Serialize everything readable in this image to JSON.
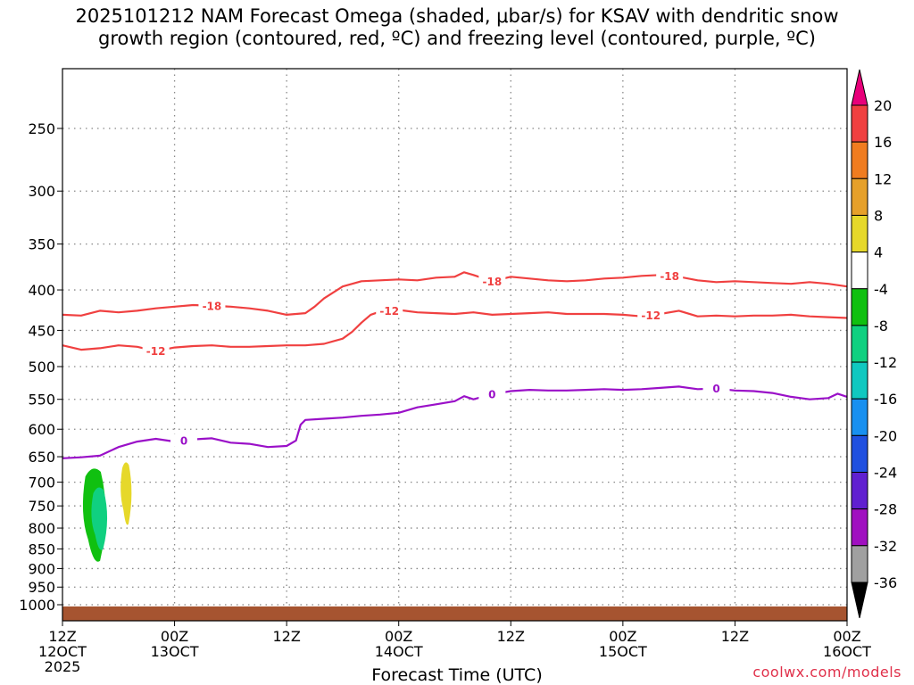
{
  "title": {
    "line1": "2025101212 NAM Forecast Omega (shaded, μbar/s) for KSAV with dendritic snow",
    "line2": "growth region (contoured, red, ºC) and freezing level (contoured, purple, ºC)"
  },
  "credit": "coolwx.com/models",
  "chart_data": {
    "type": "contour",
    "xlabel": "Forecast Time (UTC)",
    "xlim": [
      0,
      84
    ],
    "ylim": [
      1000,
      200
    ],
    "x_ticks": [
      {
        "x": 0,
        "labels": [
          "12Z",
          "12OCT",
          "2025"
        ]
      },
      {
        "x": 12,
        "labels": [
          "00Z",
          "13OCT"
        ]
      },
      {
        "x": 24,
        "labels": [
          "12Z"
        ]
      },
      {
        "x": 36,
        "labels": [
          "00Z",
          "14OCT"
        ]
      },
      {
        "x": 48,
        "labels": [
          "12Z"
        ]
      },
      {
        "x": 60,
        "labels": [
          "00Z",
          "15OCT"
        ]
      },
      {
        "x": 72,
        "labels": [
          "12Z"
        ]
      },
      {
        "x": 84,
        "labels": [
          "00Z",
          "16OCT"
        ]
      }
    ],
    "y_ticks": [
      250,
      300,
      350,
      400,
      450,
      500,
      550,
      600,
      650,
      700,
      750,
      800,
      850,
      900,
      950,
      1000
    ],
    "colorbar": {
      "labels": [
        "20",
        "16",
        "12",
        "8",
        "4",
        "-4",
        "-8",
        "-12",
        "-16",
        "-20",
        "-24",
        "-28",
        "-32",
        "-36"
      ],
      "colors": [
        "#e8007a",
        "#f04040",
        "#f07c20",
        "#e6a02a",
        "#e6d82a",
        "#ffffff",
        "#10c010",
        "#10d080",
        "#10c8c0",
        "#1890f0",
        "#2050e0",
        "#6020d0",
        "#a010c0",
        "#a0a0a0",
        "#000000"
      ]
    },
    "series": [
      {
        "name": "-18",
        "color": "#f04040",
        "label_x": [
          16,
          46,
          65
        ],
        "points": [
          [
            0,
            430
          ],
          [
            2,
            431
          ],
          [
            4,
            425
          ],
          [
            6,
            427
          ],
          [
            8,
            425
          ],
          [
            10,
            422
          ],
          [
            12,
            420
          ],
          [
            14,
            418
          ],
          [
            16,
            419
          ],
          [
            18,
            420
          ],
          [
            20,
            422
          ],
          [
            22,
            425
          ],
          [
            24,
            430
          ],
          [
            26,
            428
          ],
          [
            27,
            420
          ],
          [
            28,
            410
          ],
          [
            30,
            396
          ],
          [
            32,
            390
          ],
          [
            34,
            389
          ],
          [
            36,
            388
          ],
          [
            38,
            389
          ],
          [
            40,
            386
          ],
          [
            42,
            385
          ],
          [
            43,
            380
          ],
          [
            44,
            383
          ],
          [
            46,
            390
          ],
          [
            48,
            385
          ],
          [
            50,
            387
          ],
          [
            52,
            389
          ],
          [
            54,
            390
          ],
          [
            56,
            389
          ],
          [
            58,
            387
          ],
          [
            60,
            386
          ],
          [
            62,
            384
          ],
          [
            64,
            383
          ],
          [
            66,
            385
          ],
          [
            68,
            389
          ],
          [
            70,
            391
          ],
          [
            72,
            390
          ],
          [
            74,
            391
          ],
          [
            76,
            392
          ],
          [
            78,
            393
          ],
          [
            80,
            391
          ],
          [
            82,
            393
          ],
          [
            84,
            396
          ]
        ]
      },
      {
        "name": "-12",
        "color": "#f04040",
        "label_x": [
          10,
          35,
          63
        ],
        "points": [
          [
            0,
            470
          ],
          [
            2,
            476
          ],
          [
            4,
            474
          ],
          [
            6,
            470
          ],
          [
            8,
            472
          ],
          [
            10,
            478
          ],
          [
            12,
            473
          ],
          [
            14,
            471
          ],
          [
            16,
            470
          ],
          [
            18,
            472
          ],
          [
            20,
            472
          ],
          [
            22,
            471
          ],
          [
            24,
            470
          ],
          [
            26,
            470
          ],
          [
            28,
            468
          ],
          [
            30,
            461
          ],
          [
            31,
            452
          ],
          [
            32,
            440
          ],
          [
            33,
            430
          ],
          [
            34,
            426
          ],
          [
            36,
            424
          ],
          [
            38,
            427
          ],
          [
            40,
            428
          ],
          [
            42,
            429
          ],
          [
            44,
            427
          ],
          [
            46,
            430
          ],
          [
            48,
            429
          ],
          [
            50,
            428
          ],
          [
            52,
            427
          ],
          [
            54,
            429
          ],
          [
            56,
            429
          ],
          [
            58,
            429
          ],
          [
            60,
            430
          ],
          [
            62,
            432
          ],
          [
            64,
            429
          ],
          [
            66,
            425
          ],
          [
            68,
            432
          ],
          [
            70,
            431
          ],
          [
            72,
            432
          ],
          [
            74,
            431
          ],
          [
            76,
            431
          ],
          [
            78,
            430
          ],
          [
            80,
            432
          ],
          [
            82,
            433
          ],
          [
            84,
            434
          ]
        ]
      },
      {
        "name": "0",
        "color": "#9a10c8",
        "label_x": [
          13,
          46,
          70
        ],
        "points": [
          [
            0,
            653
          ],
          [
            2,
            651
          ],
          [
            4,
            648
          ],
          [
            6,
            632
          ],
          [
            8,
            622
          ],
          [
            10,
            617
          ],
          [
            12,
            622
          ],
          [
            14,
            618
          ],
          [
            16,
            616
          ],
          [
            18,
            624
          ],
          [
            20,
            626
          ],
          [
            22,
            632
          ],
          [
            24,
            630
          ],
          [
            25,
            620
          ],
          [
            25.5,
            592
          ],
          [
            26,
            584
          ],
          [
            28,
            582
          ],
          [
            30,
            580
          ],
          [
            32,
            577
          ],
          [
            34,
            575
          ],
          [
            36,
            572
          ],
          [
            38,
            563
          ],
          [
            40,
            558
          ],
          [
            42,
            553
          ],
          [
            43,
            545
          ],
          [
            44,
            550
          ],
          [
            46,
            542
          ],
          [
            48,
            537
          ],
          [
            50,
            535
          ],
          [
            52,
            536
          ],
          [
            54,
            536
          ],
          [
            56,
            535
          ],
          [
            58,
            534
          ],
          [
            60,
            535
          ],
          [
            62,
            534
          ],
          [
            64,
            532
          ],
          [
            66,
            530
          ],
          [
            68,
            534
          ],
          [
            70,
            533
          ],
          [
            72,
            536
          ],
          [
            74,
            537
          ],
          [
            76,
            540
          ],
          [
            78,
            546
          ],
          [
            80,
            550
          ],
          [
            82,
            548
          ],
          [
            83,
            541
          ],
          [
            84,
            546
          ]
        ]
      }
    ],
    "shaded_regions": [
      {
        "value_range": [
          -8,
          -4
        ],
        "color": "#10c010",
        "hours": [
          2,
          5
        ],
        "pressure": [
          670,
          880
        ]
      },
      {
        "value_range": [
          -12,
          -8
        ],
        "color": "#10d080",
        "hours": [
          3,
          5
        ],
        "pressure": [
          710,
          850
        ]
      },
      {
        "value_range": [
          4,
          8
        ],
        "color": "#e6d82a",
        "hours": [
          6.2,
          7.5
        ],
        "pressure": [
          660,
          790
        ]
      }
    ],
    "terrain": {
      "color": "#a65430",
      "pressure_top": 1005
    }
  }
}
